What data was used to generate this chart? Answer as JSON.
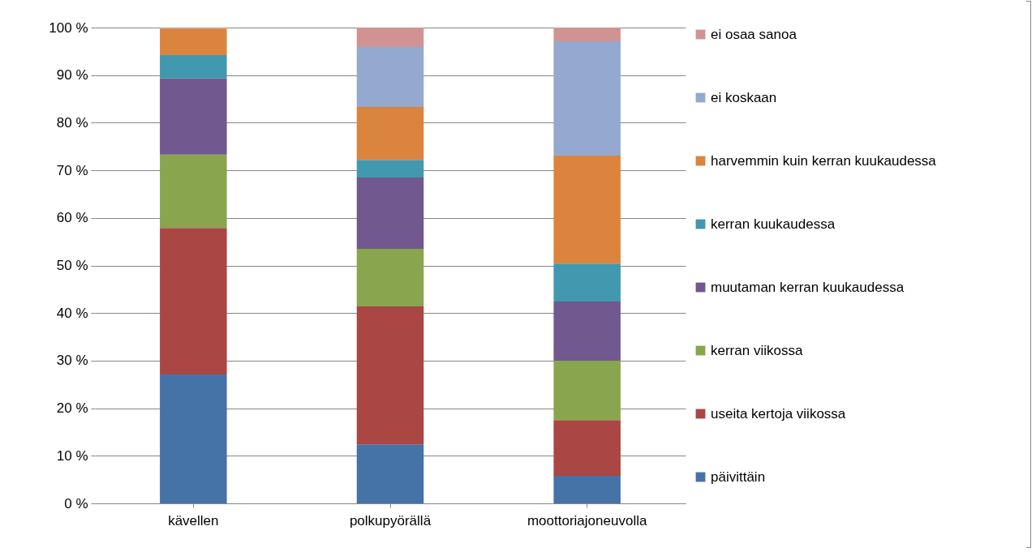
{
  "chart_data": {
    "type": "bar",
    "stacked": true,
    "categories": [
      "kävellen",
      "polkupyörällä",
      "moottoriajoneuvolla"
    ],
    "series": [
      {
        "name": "päivittäin",
        "color": "#4572a7",
        "values": [
          27.1,
          12.4,
          5.8
        ]
      },
      {
        "name": "useita kertoja viikossa",
        "color": "#aa4643",
        "values": [
          30.8,
          29,
          11.7
        ]
      },
      {
        "name": "kerran viikossa",
        "color": "#89a54e",
        "values": [
          15.4,
          12.1,
          12.5
        ]
      },
      {
        "name": "muutaman kerran kuukaudessa",
        "color": "#71588f",
        "values": [
          16,
          15,
          12.4
        ]
      },
      {
        "name": "kerran kuukaudessa",
        "color": "#4198af",
        "values": [
          4.9,
          3.7,
          8
        ]
      },
      {
        "name": "harvemmin kuin kerran kuukaudessa",
        "color": "#db843d",
        "values": [
          5.6,
          11.1,
          22.7
        ]
      },
      {
        "name": "ei koskaan",
        "color": "#93a9cf",
        "values": [
          0,
          12.6,
          24
        ]
      },
      {
        "name": "ei osaa sanoa",
        "color": "#d19392",
        "values": [
          0.2,
          4.1,
          2.9
        ]
      }
    ],
    "ylim": [
      0,
      100
    ],
    "yticks": [
      {
        "value": 0,
        "label": "0 %"
      },
      {
        "value": 10,
        "label": "10 %"
      },
      {
        "value": 20,
        "label": "20 %"
      },
      {
        "value": 30,
        "label": "30 %"
      },
      {
        "value": 40,
        "label": "40 %"
      },
      {
        "value": 50,
        "label": "50 %"
      },
      {
        "value": 60,
        "label": "60 %"
      },
      {
        "value": 70,
        "label": "70 %"
      },
      {
        "value": 80,
        "label": "80 %"
      },
      {
        "value": 90,
        "label": "90 %"
      },
      {
        "value": 100,
        "label": "100 %"
      }
    ],
    "grid": "y",
    "legend": "right"
  }
}
